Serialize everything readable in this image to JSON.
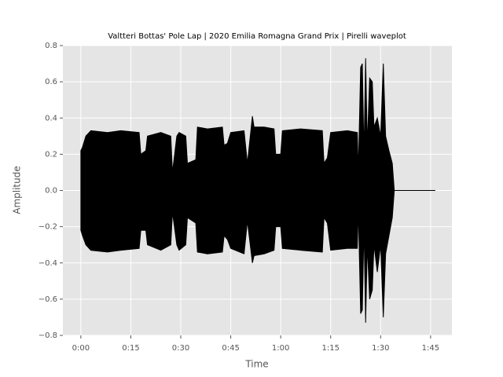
{
  "chart_data": {
    "type": "waveplot",
    "title": "Valtteri Bottas' Pole Lap | 2020 Emilia Romagna Grand Prix | Pirelli waveplot",
    "x_label": "Time",
    "y_label": "Amplitude",
    "x": [
      0,
      0.5,
      1.5,
      3,
      8,
      12,
      17.5,
      18,
      19.5,
      20,
      24,
      27,
      27.5,
      28.8,
      29.5,
      31.5,
      32,
      34.5,
      35,
      38,
      42.5,
      43,
      44,
      45,
      49,
      50,
      51.5,
      52,
      55,
      58,
      58.5,
      60,
      60.5,
      66,
      72.5,
      73,
      74,
      75,
      80,
      83,
      83.3,
      84,
      84.5,
      85,
      85.5,
      86,
      86.7,
      87.5,
      88,
      89,
      90,
      90.8,
      91.5,
      92.5,
      93.5,
      94.1,
      106.4
    ],
    "series": [
      {
        "color": "#000000",
        "values": [
          0.22,
          0.24,
          0.3,
          0.33,
          0.32,
          0.33,
          0.32,
          0.2,
          0.22,
          0.3,
          0.32,
          0.3,
          0.1,
          0.3,
          0.32,
          0.3,
          0.15,
          0.17,
          0.35,
          0.34,
          0.35,
          0.25,
          0.26,
          0.32,
          0.33,
          0.15,
          0.41,
          0.35,
          0.35,
          0.34,
          0.2,
          0.2,
          0.33,
          0.34,
          0.33,
          0.15,
          0.18,
          0.32,
          0.33,
          0.32,
          0.1,
          0.68,
          0.7,
          0.2,
          0.73,
          0.25,
          0.62,
          0.6,
          0.35,
          0.4,
          0.3,
          0.7,
          0.3,
          0.22,
          0.15,
          0,
          0
        ]
      },
      {
        "color": "#000000",
        "values": [
          -0.22,
          -0.25,
          -0.3,
          -0.33,
          -0.34,
          -0.33,
          -0.32,
          -0.22,
          -0.22,
          -0.3,
          -0.33,
          -0.3,
          -0.12,
          -0.3,
          -0.33,
          -0.3,
          -0.15,
          -0.18,
          -0.34,
          -0.35,
          -0.34,
          -0.25,
          -0.27,
          -0.32,
          -0.35,
          -0.17,
          -0.4,
          -0.36,
          -0.35,
          -0.33,
          -0.2,
          -0.2,
          -0.32,
          -0.33,
          -0.34,
          -0.15,
          -0.18,
          -0.33,
          -0.32,
          -0.32,
          -0.1,
          -0.68,
          -0.66,
          -0.2,
          -0.73,
          -0.3,
          -0.6,
          -0.55,
          -0.3,
          -0.45,
          -0.3,
          -0.7,
          -0.35,
          -0.25,
          -0.15,
          0,
          0
        ]
      }
    ],
    "xlim": [
      -5.4,
      111.4
    ],
    "ylim": [
      -0.8,
      0.8
    ],
    "xticks": [
      {
        "value": 0,
        "label": "0:00"
      },
      {
        "value": 15,
        "label": "0:15"
      },
      {
        "value": 30,
        "label": "0:30"
      },
      {
        "value": 45,
        "label": "0:45"
      },
      {
        "value": 60,
        "label": "1:00"
      },
      {
        "value": 75,
        "label": "1:15"
      },
      {
        "value": 90,
        "label": "1:30"
      },
      {
        "value": 105,
        "label": "1:45"
      }
    ],
    "yticks": [
      {
        "value": 0.8,
        "label": "0.8"
      },
      {
        "value": 0.6,
        "label": "0.6"
      },
      {
        "value": 0.4,
        "label": "0.4"
      },
      {
        "value": 0.2,
        "label": "0.2"
      },
      {
        "value": 0,
        "label": "0.0"
      },
      {
        "value": -0.2,
        "label": "−0.2"
      },
      {
        "value": -0.4,
        "label": "−0.4"
      },
      {
        "value": -0.6,
        "label": "−0.6"
      },
      {
        "value": -0.8,
        "label": "−0.8"
      }
    ],
    "grid": true
  }
}
